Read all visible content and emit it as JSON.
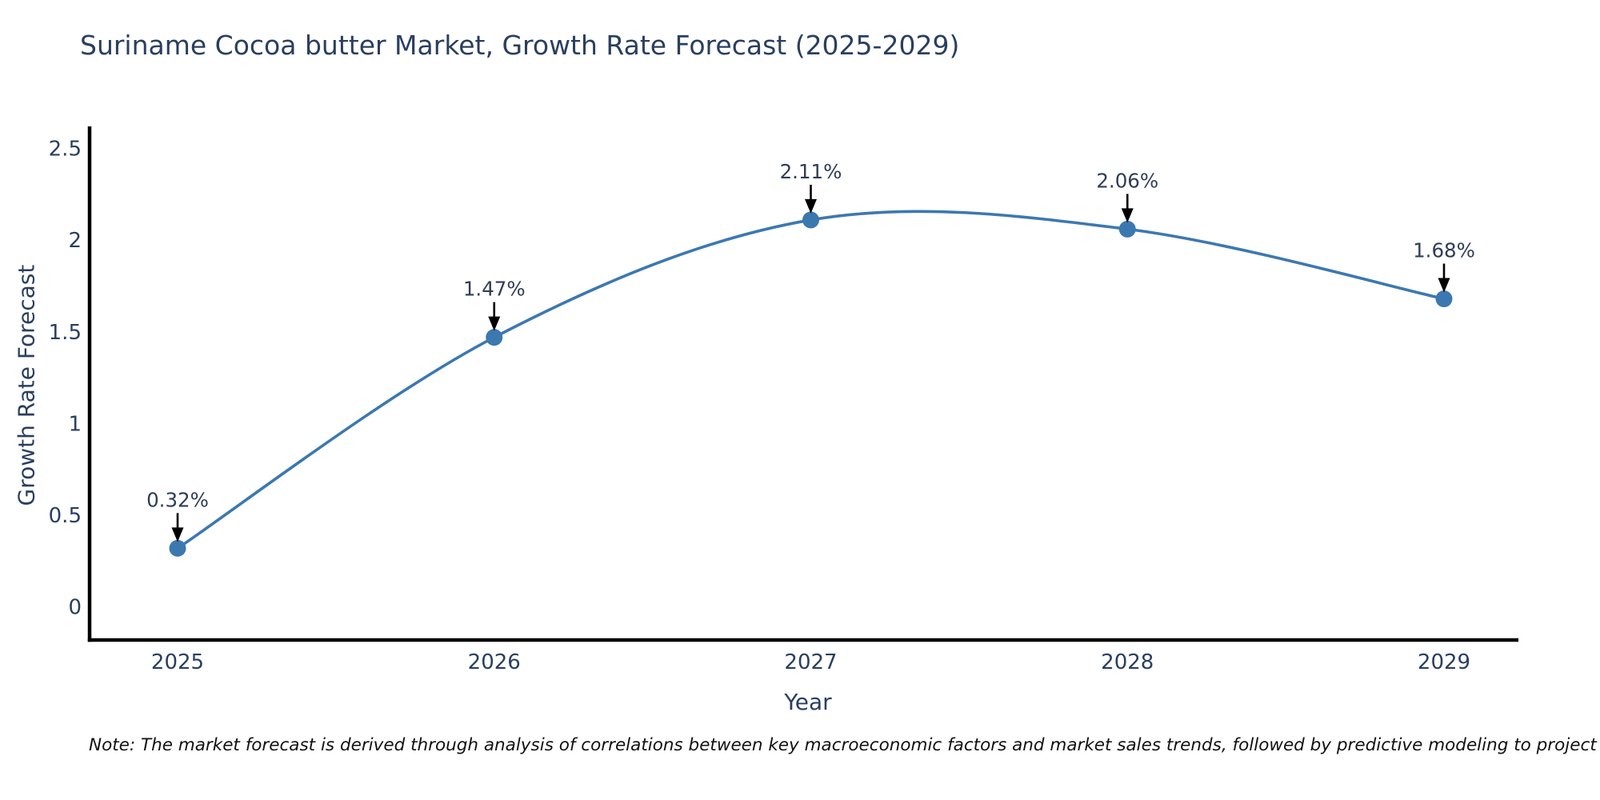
{
  "title": "Suriname Cocoa butter Market, Growth Rate Forecast (2025-2029)",
  "note": "Note: The market forecast is derived through analysis of correlations between key macroeconomic factors and market sales trends, followed by predictive modeling to project future sales.",
  "chart_data": {
    "type": "line",
    "title": "Suriname Cocoa butter Market, Growth Rate Forecast (2025-2029)",
    "xlabel": "Year",
    "ylabel": "Growth Rate Forecast",
    "categories": [
      "2025",
      "2026",
      "2027",
      "2028",
      "2029"
    ],
    "values": [
      0.32,
      1.47,
      2.11,
      2.06,
      1.68
    ],
    "point_labels": [
      "0.32%",
      "1.47%",
      "2.11%",
      "2.06%",
      "1.68%"
    ],
    "yticks": [
      0,
      0.5,
      1,
      1.5,
      2,
      2.5
    ],
    "ytick_labels": [
      "0",
      "0.5",
      "1",
      "1.5",
      "2",
      "2.5"
    ],
    "ylim": [
      -0.18,
      2.62
    ],
    "grid": false,
    "legend": false,
    "line_color": "#3c78b0",
    "marker_color": "#3c78b0",
    "axis_color": "#000000",
    "text_color": "#2a3f5f",
    "annotation_text_color": "#2f3d56",
    "annotation_arrow_color": "#000000"
  }
}
